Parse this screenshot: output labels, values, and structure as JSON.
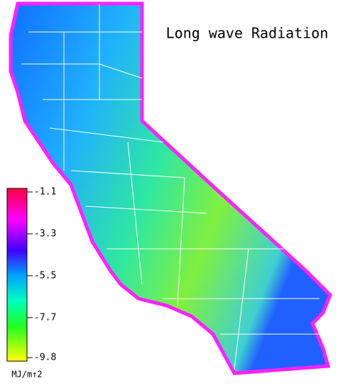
{
  "title": "Long wave Radiation",
  "legend": {
    "ticks": [
      -1.1,
      -3.3,
      -5.5,
      -7.7,
      -9.8
    ],
    "unit": "MJ/m↑2"
  }
}
